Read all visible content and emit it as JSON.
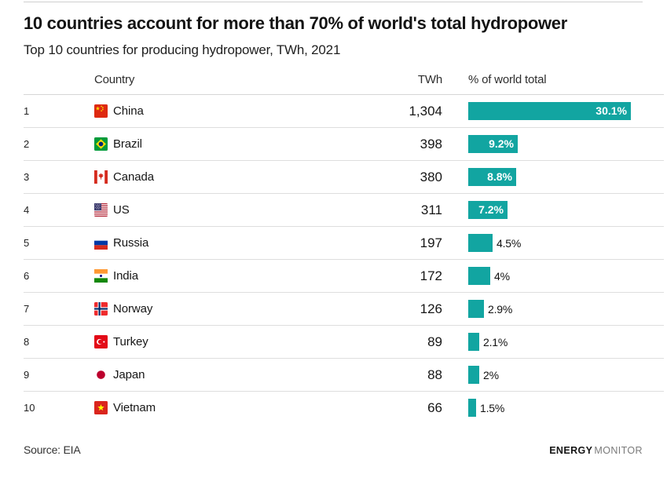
{
  "page": {
    "title": "10 countries account for more than 70% of world's total hydropower",
    "subtitle": "Top 10 countries for producing hydropower, TWh, 2021"
  },
  "table": {
    "headers": {
      "country": "Country",
      "twh": "TWh",
      "pct": "% of world total"
    },
    "rows": [
      {
        "rank": "1",
        "country": "China",
        "flag_icon": "china-flag-icon",
        "twh": "1,304",
        "pct_label": "30.1%",
        "pct_value": 30.1
      },
      {
        "rank": "2",
        "country": "Brazil",
        "flag_icon": "brazil-flag-icon",
        "twh": "398",
        "pct_label": "9.2%",
        "pct_value": 9.2
      },
      {
        "rank": "3",
        "country": "Canada",
        "flag_icon": "canada-flag-icon",
        "twh": "380",
        "pct_label": "8.8%",
        "pct_value": 8.8
      },
      {
        "rank": "4",
        "country": "US",
        "flag_icon": "us-flag-icon",
        "twh": "311",
        "pct_label": "7.2%",
        "pct_value": 7.2
      },
      {
        "rank": "5",
        "country": "Russia",
        "flag_icon": "russia-flag-icon",
        "twh": "197",
        "pct_label": "4.5%",
        "pct_value": 4.5
      },
      {
        "rank": "6",
        "country": "India",
        "flag_icon": "india-flag-icon",
        "twh": "172",
        "pct_label": "4%",
        "pct_value": 4
      },
      {
        "rank": "7",
        "country": "Norway",
        "flag_icon": "norway-flag-icon",
        "twh": "126",
        "pct_label": "2.9%",
        "pct_value": 2.9
      },
      {
        "rank": "8",
        "country": "Turkey",
        "flag_icon": "turkey-flag-icon",
        "twh": "89",
        "pct_label": "2.1%",
        "pct_value": 2.1
      },
      {
        "rank": "9",
        "country": "Japan",
        "flag_icon": "japan-flag-icon",
        "twh": "88",
        "pct_label": "2%",
        "pct_value": 2
      },
      {
        "rank": "10",
        "country": "Vietnam",
        "flag_icon": "vietnam-flag-icon",
        "twh": "66",
        "pct_label": "1.5%",
        "pct_value": 1.5
      }
    ]
  },
  "footer": {
    "source": "Source: EIA",
    "brand_bold": "ENERGY",
    "brand_light": "MONITOR"
  },
  "colors": {
    "bar": "#12a5a1",
    "bar_label_inside": "#ffffff",
    "rule": "#dedede"
  },
  "chart_data": {
    "type": "bar",
    "orientation": "horizontal",
    "title": "10 countries account for more than 70% of world's total hydropower",
    "subtitle": "Top 10 countries for producing hydropower, TWh, 2021",
    "categories": [
      "China",
      "Brazil",
      "Canada",
      "US",
      "Russia",
      "India",
      "Norway",
      "Turkey",
      "Japan",
      "Vietnam"
    ],
    "series": [
      {
        "name": "TWh",
        "values": [
          1304,
          398,
          380,
          311,
          197,
          172,
          126,
          89,
          88,
          66
        ]
      },
      {
        "name": "% of world total",
        "values": [
          30.1,
          9.2,
          8.8,
          7.2,
          4.5,
          4,
          2.9,
          2.1,
          2,
          1.5
        ]
      }
    ],
    "value_labels": [
      "30.1%",
      "9.2%",
      "8.8%",
      "7.2%",
      "4.5%",
      "4%",
      "2.9%",
      "2.1%",
      "2%",
      "1.5%"
    ],
    "xlim_pct": [
      0,
      30.1
    ],
    "grid": false,
    "legend_position": "none",
    "source": "Source: EIA"
  }
}
